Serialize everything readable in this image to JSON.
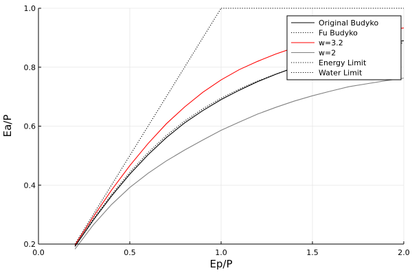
{
  "chart_data": {
    "type": "line",
    "title": "",
    "xlabel": "Ep/P",
    "ylabel": "Ea/P",
    "xlim": [
      0.0,
      2.0
    ],
    "ylim": [
      0.2,
      1.0
    ],
    "xticks": [
      0.0,
      0.5,
      1.0,
      1.5,
      2.0
    ],
    "xtick_labels": [
      "0.0",
      "0.5",
      "1.0",
      "1.5",
      "2.0"
    ],
    "yticks": [
      0.2,
      0.4,
      0.6,
      0.8,
      1.0
    ],
    "ytick_labels": [
      "0.2",
      "0.4",
      "0.6",
      "0.8",
      "1.0"
    ],
    "grid": true,
    "legend_position": "top-right",
    "series": [
      {
        "name": "Original Budyko",
        "color": "#000000",
        "dash": "solid",
        "x": [
          0.2,
          0.3,
          0.4,
          0.5,
          0.6,
          0.7,
          0.8,
          0.9,
          1.0,
          1.1,
          1.2,
          1.3,
          1.4,
          1.5,
          1.6,
          1.7,
          1.8,
          1.9,
          2.0
        ],
        "y": [
          0.192,
          0.281,
          0.363,
          0.437,
          0.503,
          0.561,
          0.611,
          0.653,
          0.69,
          0.722,
          0.751,
          0.776,
          0.799,
          0.819,
          0.836,
          0.852,
          0.866,
          0.879,
          0.89
        ]
      },
      {
        "name": "Fu Budyko",
        "color": "#000000",
        "dash": "dotted",
        "x": [
          0.2,
          0.3,
          0.4,
          0.5,
          0.6,
          0.7,
          0.8,
          0.9,
          1.0,
          1.1,
          1.2,
          1.3,
          1.4,
          1.5,
          1.6,
          1.7,
          1.8,
          1.9,
          2.0
        ],
        "y": [
          0.194,
          0.285,
          0.368,
          0.443,
          0.51,
          0.568,
          0.617,
          0.659,
          0.695,
          0.726,
          0.753,
          0.777,
          0.798,
          0.816,
          0.832,
          0.847,
          0.86,
          0.872,
          0.883
        ]
      },
      {
        "name": "w=3.2",
        "color": "#ff0000",
        "dash": "solid",
        "x": [
          0.2,
          0.3,
          0.4,
          0.5,
          0.6,
          0.7,
          0.8,
          0.9,
          1.0,
          1.1,
          1.2,
          1.3,
          1.4,
          1.5,
          1.6,
          1.7,
          1.8,
          1.9,
          2.0
        ],
        "y": [
          0.197,
          0.292,
          0.383,
          0.466,
          0.541,
          0.608,
          0.665,
          0.715,
          0.757,
          0.792,
          0.82,
          0.845,
          0.866,
          0.884,
          0.898,
          0.909,
          0.918,
          0.926,
          0.933
        ]
      },
      {
        "name": "w=2",
        "color": "#808080",
        "dash": "solid",
        "x": [
          0.2,
          0.3,
          0.4,
          0.5,
          0.6,
          0.7,
          0.8,
          0.9,
          1.0,
          1.1,
          1.2,
          1.3,
          1.4,
          1.5,
          1.6,
          1.7,
          1.8,
          1.9,
          2.0
        ],
        "y": [
          0.183,
          0.265,
          0.334,
          0.392,
          0.44,
          0.482,
          0.519,
          0.553,
          0.586,
          0.614,
          0.641,
          0.664,
          0.685,
          0.703,
          0.719,
          0.734,
          0.744,
          0.754,
          0.763
        ]
      },
      {
        "name": "Energy Limit",
        "color": "#000000",
        "dash": "dotted",
        "x": [
          0.2,
          1.0
        ],
        "y": [
          0.2,
          1.0
        ]
      },
      {
        "name": "Water Limit",
        "color": "#000000",
        "dash": "dotted",
        "x": [
          1.0,
          2.0
        ],
        "y": [
          1.0,
          1.0
        ]
      }
    ]
  }
}
